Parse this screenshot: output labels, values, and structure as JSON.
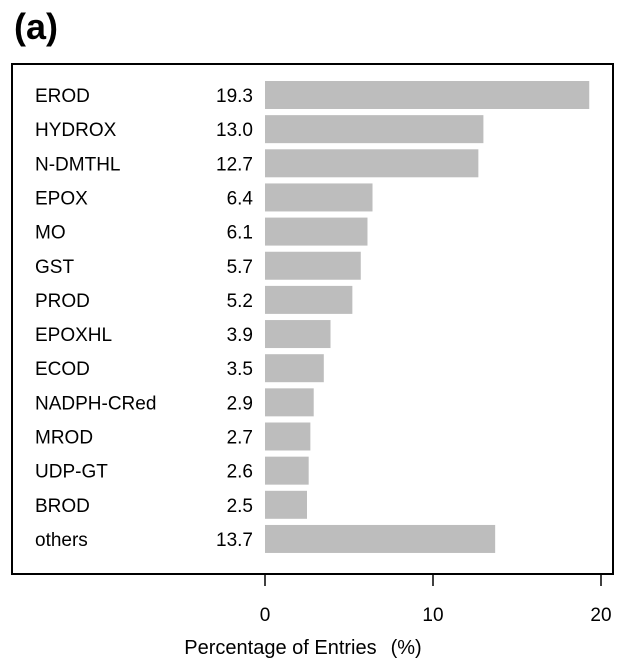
{
  "panel_label": "(a)",
  "chart_data": {
    "type": "bar",
    "orientation": "horizontal",
    "categories": [
      "EROD",
      "HYDROX",
      "N-DMTHL",
      "EPOX",
      "MO",
      "GST",
      "PROD",
      "EPOXHL",
      "ECOD",
      "NADPH-CRed",
      "MROD",
      "UDP-GT",
      "BROD",
      "others"
    ],
    "values": [
      19.3,
      13.0,
      12.7,
      6.4,
      6.1,
      5.7,
      5.2,
      3.9,
      3.5,
      2.9,
      2.7,
      2.6,
      2.5,
      13.7
    ],
    "value_labels": [
      "19.3",
      "13.0",
      "12.7",
      "6.4",
      "6.1",
      "5.7",
      "5.2",
      "3.9",
      "3.5",
      "2.9",
      "2.7",
      "2.6",
      "2.5",
      "13.7"
    ],
    "title": "",
    "xlabel": "Percentage of Entries",
    "xlabel_unit": "(%)",
    "ylabel": "",
    "xlim": [
      0,
      20
    ],
    "xticks": [
      0,
      10,
      20
    ],
    "xtick_labels": [
      "0",
      "10",
      "20"
    ],
    "bar_color": "#bdbdbd",
    "grid": false,
    "legend": "none"
  }
}
